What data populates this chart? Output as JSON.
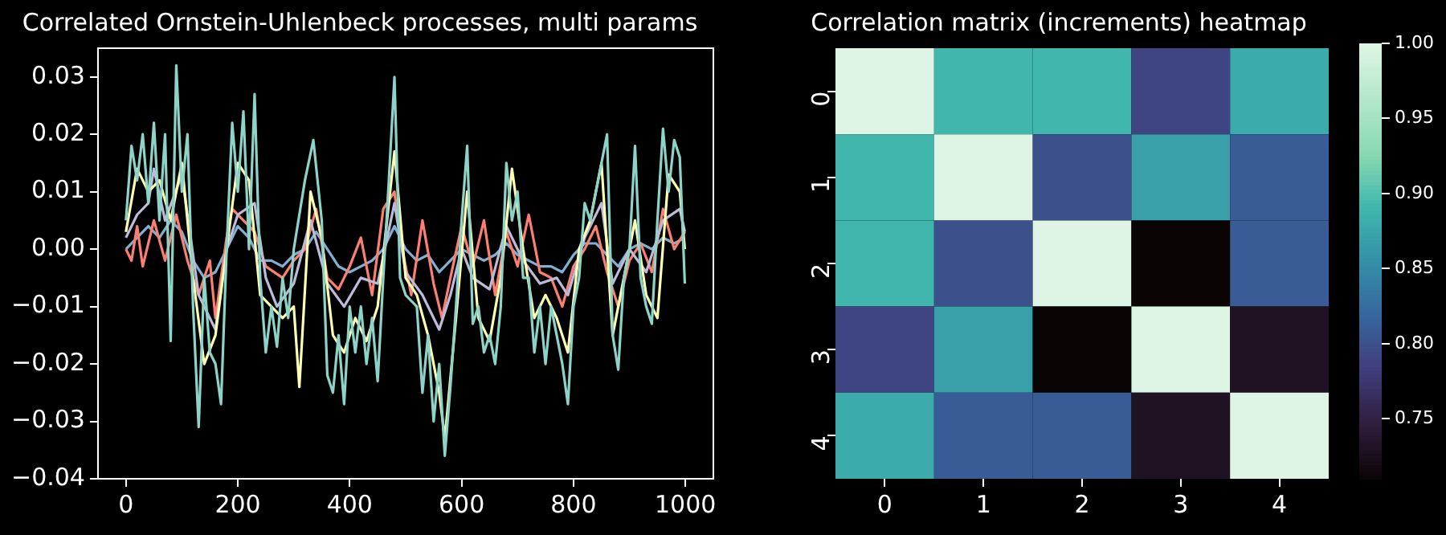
{
  "chart_data": [
    {
      "type": "line",
      "title": "Correlated Ornstein-Uhlenbeck processes, multi params",
      "xlim": [
        -50,
        1050
      ],
      "ylim": [
        -0.04,
        0.035
      ],
      "xticks": [
        0,
        200,
        400,
        600,
        800,
        1000
      ],
      "yticks": [
        {
          "value": -0.04,
          "label": "−0.04"
        },
        {
          "value": -0.03,
          "label": "−0.03"
        },
        {
          "value": -0.02,
          "label": "−0.02"
        },
        {
          "value": -0.01,
          "label": "−0.01"
        },
        {
          "value": 0,
          "label": "0.00"
        },
        {
          "value": 0.01,
          "label": "0.01"
        },
        {
          "value": 0.02,
          "label": "0.02"
        },
        {
          "value": 0.03,
          "label": "0.03"
        }
      ],
      "grid": false,
      "series": [
        {
          "color": "#8dd3c7",
          "x": [
            0,
            10,
            20,
            30,
            40,
            50,
            60,
            70,
            80,
            90,
            100,
            110,
            120,
            130,
            140,
            150,
            160,
            170,
            180,
            190,
            200,
            210,
            220,
            230,
            240,
            250,
            260,
            270,
            280,
            290,
            300,
            320,
            335,
            350,
            360,
            370,
            380,
            390,
            400,
            410,
            420,
            430,
            440,
            450,
            460,
            470,
            480,
            490,
            500,
            520,
            530,
            540,
            550,
            560,
            570,
            580,
            590,
            600,
            610,
            620,
            630,
            640,
            650,
            660,
            670,
            680,
            690,
            700,
            710,
            720,
            730,
            740,
            750,
            760,
            770,
            780,
            790,
            800,
            810,
            820,
            830,
            840,
            850,
            860,
            870,
            880,
            890,
            900,
            910,
            920,
            930,
            940,
            950,
            960,
            970,
            980,
            990,
            999
          ],
          "values": [
            0.005,
            0.018,
            0.012,
            0.02,
            0.008,
            0.022,
            0.005,
            0.02,
            -0.016,
            0.032,
            0.01,
            0.02,
            -0.01,
            -0.031,
            -0.005,
            -0.018,
            -0.02,
            -0.027,
            0.0,
            0.022,
            0.01,
            0.024,
            0.0,
            0.027,
            -0.005,
            -0.018,
            -0.01,
            -0.017,
            -0.005,
            -0.012,
            0.0,
            0.012,
            0.019,
            0.005,
            -0.022,
            -0.025,
            -0.015,
            -0.027,
            -0.01,
            -0.018,
            -0.01,
            -0.02,
            -0.012,
            -0.023,
            -0.005,
            0.012,
            0.03,
            -0.005,
            -0.008,
            -0.01,
            -0.025,
            -0.015,
            -0.03,
            -0.02,
            -0.036,
            -0.024,
            -0.01,
            0.005,
            0.018,
            -0.013,
            -0.01,
            -0.018,
            -0.015,
            -0.02,
            -0.01,
            0.015,
            0.005,
            0.01,
            -0.005,
            -0.005,
            -0.018,
            -0.01,
            -0.02,
            -0.01,
            -0.015,
            -0.02,
            -0.027,
            -0.01,
            -0.005,
            0.008,
            0.005,
            0.01,
            0.015,
            0.02,
            -0.015,
            -0.021,
            -0.005,
            0.0,
            0.018,
            -0.005,
            -0.01,
            -0.013,
            0.005,
            0.021,
            0.01,
            0.019,
            0.016,
            -0.006
          ]
        },
        {
          "color": "#ffffb3",
          "x": [
            0,
            20,
            40,
            60,
            80,
            100,
            120,
            140,
            160,
            180,
            200,
            220,
            240,
            260,
            280,
            300,
            310,
            330,
            350,
            370,
            390,
            410,
            430,
            450,
            470,
            480,
            500,
            520,
            540,
            560,
            570,
            590,
            610,
            630,
            650,
            670,
            690,
            710,
            730,
            750,
            770,
            790,
            810,
            830,
            850,
            870,
            890,
            910,
            930,
            950,
            970,
            990,
            999
          ],
          "values": [
            0.003,
            0.014,
            0.01,
            0.012,
            0.005,
            0.015,
            -0.005,
            -0.02,
            -0.015,
            0.0,
            0.015,
            0.012,
            -0.008,
            -0.01,
            -0.012,
            -0.01,
            -0.024,
            0.01,
            0.002,
            -0.015,
            -0.018,
            -0.012,
            -0.016,
            -0.01,
            0.008,
            0.017,
            -0.005,
            -0.008,
            -0.015,
            -0.025,
            -0.033,
            -0.012,
            0.01,
            -0.012,
            -0.016,
            -0.005,
            0.014,
            0.0,
            -0.012,
            -0.008,
            -0.012,
            -0.018,
            0.0,
            0.005,
            0.015,
            -0.015,
            -0.005,
            0.005,
            -0.008,
            -0.012,
            0.013,
            0.01,
            0.0
          ]
        },
        {
          "color": "#bebada",
          "x": [
            0,
            20,
            40,
            50,
            70,
            100,
            130,
            160,
            180,
            200,
            230,
            250,
            270,
            300,
            330,
            360,
            390,
            420,
            450,
            480,
            500,
            530,
            560,
            580,
            600,
            620,
            650,
            680,
            710,
            740,
            770,
            790,
            820,
            850,
            870,
            900,
            930,
            960,
            990,
            999
          ],
          "values": [
            0.002,
            0.006,
            0.008,
            0.014,
            0.005,
            0.013,
            -0.008,
            -0.014,
            0.0,
            0.006,
            0.008,
            -0.005,
            -0.01,
            -0.006,
            0.005,
            -0.006,
            -0.01,
            -0.005,
            -0.006,
            0.008,
            -0.004,
            -0.008,
            -0.014,
            -0.008,
            0.0,
            -0.005,
            -0.007,
            0.004,
            -0.002,
            -0.006,
            -0.005,
            -0.008,
            0.002,
            0.008,
            -0.006,
            0.0,
            -0.004,
            0.005,
            0.007,
            0.003
          ]
        },
        {
          "color": "#fb8072",
          "x": [
            0,
            10,
            20,
            30,
            50,
            70,
            90,
            110,
            130,
            150,
            160,
            180,
            190,
            210,
            230,
            250,
            280,
            300,
            320,
            340,
            360,
            380,
            400,
            420,
            440,
            460,
            480,
            490,
            510,
            530,
            550,
            565,
            580,
            600,
            620,
            640,
            660,
            680,
            700,
            720,
            740,
            760,
            780,
            800,
            820,
            840,
            860,
            880,
            900,
            920,
            940,
            960,
            980,
            999
          ],
          "values": [
            0.0,
            -0.002,
            0.004,
            -0.003,
            0.005,
            -0.002,
            0.006,
            -0.002,
            -0.008,
            -0.002,
            -0.012,
            0.002,
            0.007,
            0.005,
            0.003,
            -0.003,
            -0.005,
            -0.002,
            0.0,
            0.007,
            -0.005,
            -0.007,
            -0.003,
            0.002,
            -0.008,
            0.007,
            0.01,
            0.002,
            -0.008,
            0.005,
            -0.006,
            -0.012,
            -0.005,
            0.004,
            -0.003,
            0.005,
            -0.008,
            0.003,
            -0.003,
            0.006,
            -0.004,
            -0.005,
            -0.01,
            -0.003,
            0.0,
            0.004,
            -0.004,
            -0.01,
            -0.002,
            0.001,
            -0.004,
            0.007,
            0.0,
            0.003
          ]
        },
        {
          "color": "#80b1d3",
          "x": [
            0,
            20,
            40,
            60,
            80,
            100,
            120,
            140,
            160,
            180,
            200,
            220,
            240,
            260,
            280,
            300,
            320,
            340,
            360,
            380,
            400,
            420,
            440,
            460,
            480,
            500,
            520,
            540,
            560,
            580,
            600,
            620,
            640,
            660,
            680,
            700,
            720,
            740,
            760,
            780,
            800,
            820,
            840,
            860,
            880,
            900,
            920,
            940,
            960,
            980,
            999
          ],
          "values": [
            0.0,
            0.002,
            0.004,
            0.002,
            0.005,
            0.003,
            -0.002,
            -0.005,
            -0.004,
            0.0,
            0.004,
            0.002,
            -0.002,
            -0.002,
            -0.003,
            -0.001,
            0.0,
            0.003,
            0.0,
            -0.003,
            -0.004,
            -0.003,
            -0.002,
            0.0,
            0.004,
            0.0,
            -0.002,
            -0.001,
            -0.004,
            -0.002,
            0.0,
            -0.001,
            -0.002,
            -0.001,
            0.001,
            -0.001,
            -0.002,
            -0.003,
            -0.003,
            -0.004,
            -0.001,
            0.001,
            0.001,
            -0.001,
            -0.003,
            0.0,
            0.001,
            0.0,
            0.002,
            0.001,
            0.002
          ]
        }
      ]
    },
    {
      "type": "heatmap",
      "title": "Correlation matrix (increments) heatmap",
      "categories": [
        "0",
        "1",
        "2",
        "3",
        "4"
      ],
      "y_categories": [
        "0",
        "1",
        "2",
        "3",
        "4"
      ],
      "cells": [
        [
          1.0,
          0.89,
          0.89,
          0.79,
          0.88
        ],
        [
          0.89,
          1.0,
          0.8,
          0.87,
          0.81
        ],
        [
          0.89,
          0.8,
          1.0,
          0.71,
          0.81
        ],
        [
          0.79,
          0.87,
          0.71,
          1.0,
          0.73
        ],
        [
          0.88,
          0.81,
          0.81,
          0.73,
          1.0
        ]
      ],
      "clim": [
        0.71,
        1.0
      ],
      "cticks": [
        0.75,
        {
          "value": 0.8,
          "label": "0.80"
        },
        0.85,
        {
          "value": 0.9,
          "label": "0.90"
        },
        0.95,
        {
          "value": 1.0,
          "label": "1.00"
        }
      ]
    }
  ]
}
